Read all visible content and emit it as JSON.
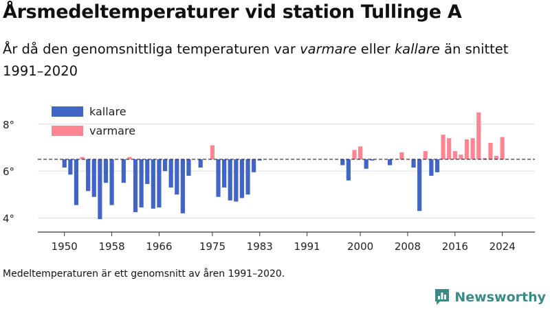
{
  "title": "Årsmedeltemperaturer vid station Tullinge A",
  "subtitle": {
    "part1": "År då den genomsnittliga temperaturen var ",
    "warmer_word": "varmare",
    "part2": " eller ",
    "colder_word": "kallare",
    "part3": " än snittet 1991–2020"
  },
  "note": "Medeltemperaturen är ett genomsnitt av åren 1991–2020.",
  "brand": "Newsworthy",
  "colors": {
    "cold": "#4264c4",
    "warm": "#ff8593",
    "grid": "#dddddd",
    "axis": "#333333",
    "reference": "#333333",
    "brand": "#3a8a86"
  },
  "chart_data": {
    "type": "bar",
    "baseline": 6.5,
    "ylim": [
      3.4,
      8.9
    ],
    "yticks": [
      4,
      6,
      8
    ],
    "ytick_labels": [
      "4°",
      "6°",
      "8°"
    ],
    "xlim": [
      1945.5,
      2029.5
    ],
    "xticks": [
      1950,
      1958,
      1966,
      1975,
      1983,
      1991,
      2000,
      2008,
      2016,
      2024
    ],
    "grid": true,
    "legend": {
      "position": "top-left",
      "entries": [
        {
          "name": "kallare",
          "color_key": "cold"
        },
        {
          "name": "varmare",
          "color_key": "warm"
        }
      ]
    },
    "series": [
      {
        "name": "kallare",
        "points": [
          [
            1950,
            6.15
          ],
          [
            1951,
            5.85
          ],
          [
            1952,
            4.55
          ],
          [
            1954,
            5.15
          ],
          [
            1955,
            4.9
          ],
          [
            1956,
            3.95
          ],
          [
            1957,
            5.5
          ],
          [
            1958,
            4.55
          ],
          [
            1960,
            5.5
          ],
          [
            1962,
            4.25
          ],
          [
            1963,
            4.45
          ],
          [
            1964,
            5.45
          ],
          [
            1965,
            4.4
          ],
          [
            1966,
            4.45
          ],
          [
            1967,
            6.0
          ],
          [
            1968,
            5.3
          ],
          [
            1969,
            5.0
          ],
          [
            1970,
            4.2
          ],
          [
            1971,
            5.8
          ],
          [
            1973,
            6.15
          ],
          [
            1976,
            4.9
          ],
          [
            1977,
            5.3
          ],
          [
            1978,
            4.75
          ],
          [
            1979,
            4.7
          ],
          [
            1980,
            4.85
          ],
          [
            1981,
            5.0
          ],
          [
            1982,
            5.95
          ],
          [
            1983,
            6.45
          ],
          [
            1997,
            6.25
          ],
          [
            1998,
            5.6
          ],
          [
            2001,
            6.1
          ],
          [
            2002,
            6.45
          ],
          [
            2005,
            6.25
          ],
          [
            2009,
            6.15
          ],
          [
            2010,
            4.3
          ],
          [
            2012,
            5.8
          ],
          [
            2013,
            5.95
          ]
        ]
      },
      {
        "name": "varmare",
        "points": [
          [
            1953,
            6.6
          ],
          [
            1961,
            6.6
          ],
          [
            1975,
            7.1
          ],
          [
            1999,
            6.9
          ],
          [
            2000,
            7.05
          ],
          [
            2007,
            6.8
          ],
          [
            2011,
            6.85
          ],
          [
            2014,
            7.55
          ],
          [
            2015,
            7.4
          ],
          [
            2016,
            6.85
          ],
          [
            2017,
            6.7
          ],
          [
            2018,
            7.35
          ],
          [
            2019,
            7.4
          ],
          [
            2020,
            8.5
          ],
          [
            2021,
            6.55
          ],
          [
            2022,
            7.2
          ],
          [
            2023,
            6.65
          ],
          [
            2024,
            7.45
          ]
        ]
      }
    ]
  }
}
